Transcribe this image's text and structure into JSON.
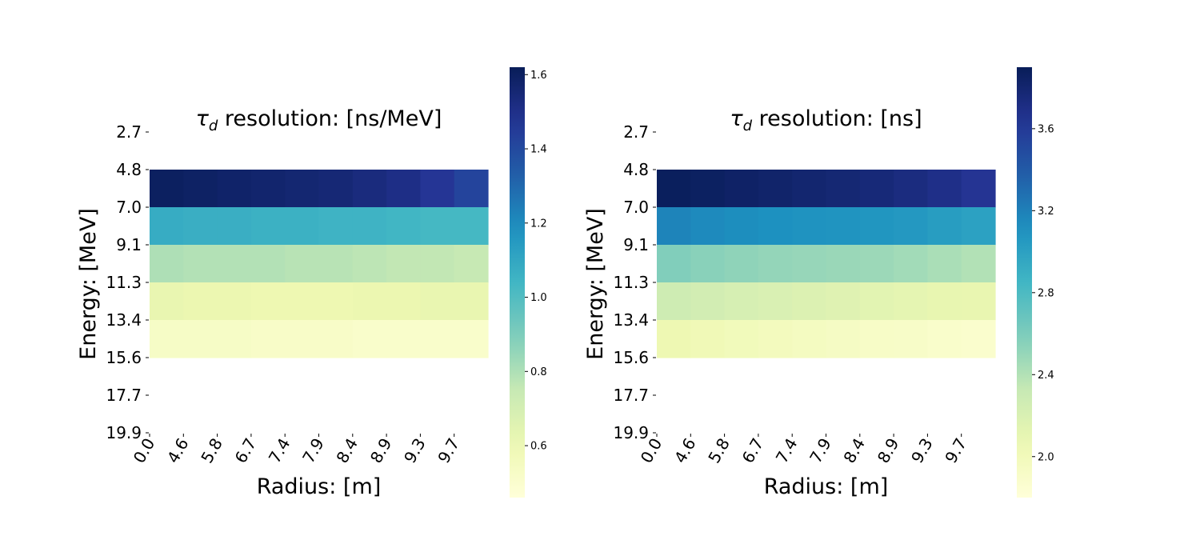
{
  "chart_data": [
    {
      "type": "heatmap",
      "title_symbol": "τ",
      "title_subscript": "d",
      "title_rest": " resolution: [ns/MeV]",
      "xlabel": "Radius: [m]",
      "ylabel": "Energy: [MeV]",
      "x_ticks": [
        "0.0",
        "4.6",
        "5.8",
        "6.7",
        "7.4",
        "7.9",
        "8.4",
        "8.9",
        "9.3",
        "9.7"
      ],
      "y_ticks": [
        "2.7",
        "4.8",
        "7.0",
        "9.1",
        "11.3",
        "13.4",
        "15.6",
        "17.7",
        "19.9"
      ],
      "rows": [
        {
          "energy_from": "4.8",
          "energy_to": "7.0",
          "values": [
            1.6,
            1.59,
            1.58,
            1.57,
            1.56,
            1.55,
            1.53,
            1.51,
            1.47,
            1.42
          ]
        },
        {
          "energy_from": "7.0",
          "energy_to": "9.1",
          "values": [
            1.08,
            1.07,
            1.07,
            1.06,
            1.06,
            1.05,
            1.05,
            1.04,
            1.03,
            1.03
          ]
        },
        {
          "energy_from": "9.1",
          "energy_to": "11.3",
          "values": [
            0.8,
            0.79,
            0.79,
            0.79,
            0.78,
            0.78,
            0.77,
            0.76,
            0.76,
            0.75
          ]
        },
        {
          "energy_from": "11.3",
          "energy_to": "13.4",
          "values": [
            0.62,
            0.61,
            0.61,
            0.6,
            0.6,
            0.6,
            0.61,
            0.61,
            0.62,
            0.62
          ]
        },
        {
          "energy_from": "13.4",
          "energy_to": "15.6",
          "values": [
            0.53,
            0.53,
            0.53,
            0.52,
            0.52,
            0.52,
            0.51,
            0.51,
            0.51,
            0.51
          ]
        }
      ],
      "colorbar": {
        "min": 0.46,
        "max": 1.62,
        "ticks": [
          "0.6",
          "0.8",
          "1.0",
          "1.2",
          "1.4",
          "1.6"
        ],
        "tick_values": [
          0.6,
          0.8,
          1.0,
          1.2,
          1.4,
          1.6
        ]
      },
      "colormap": "YlGnBu"
    },
    {
      "type": "heatmap",
      "title_symbol": "τ",
      "title_subscript": "d",
      "title_rest": " resolution: [ns]",
      "xlabel": "Radius: [m]",
      "ylabel": "Energy: [MeV]",
      "x_ticks": [
        "0.0",
        "4.6",
        "5.8",
        "6.7",
        "7.4",
        "7.9",
        "8.4",
        "8.9",
        "9.3",
        "9.7"
      ],
      "y_ticks": [
        "2.7",
        "4.8",
        "7.0",
        "9.1",
        "11.3",
        "13.4",
        "15.6",
        "17.7",
        "19.9"
      ],
      "rows": [
        {
          "energy_from": "4.8",
          "energy_to": "7.0",
          "values": [
            3.88,
            3.86,
            3.84,
            3.82,
            3.8,
            3.78,
            3.76,
            3.73,
            3.69,
            3.64
          ]
        },
        {
          "energy_from": "7.0",
          "energy_to": "9.1",
          "values": [
            3.18,
            3.15,
            3.13,
            3.11,
            3.1,
            3.09,
            3.08,
            3.06,
            3.03,
            3.0
          ]
        },
        {
          "energy_from": "9.1",
          "energy_to": "11.3",
          "values": [
            2.58,
            2.55,
            2.53,
            2.51,
            2.5,
            2.49,
            2.48,
            2.46,
            2.43,
            2.4
          ]
        },
        {
          "energy_from": "11.3",
          "energy_to": "13.4",
          "values": [
            2.28,
            2.25,
            2.22,
            2.2,
            2.18,
            2.16,
            2.14,
            2.12,
            2.1,
            2.09
          ]
        },
        {
          "energy_from": "13.4",
          "energy_to": "15.6",
          "values": [
            2.05,
            2.02,
            2.0,
            1.98,
            1.96,
            1.94,
            1.92,
            1.91,
            1.89,
            1.88
          ]
        }
      ],
      "colorbar": {
        "min": 1.8,
        "max": 3.9,
        "ticks": [
          "2.0",
          "2.4",
          "2.8",
          "3.2",
          "3.6"
        ],
        "tick_values": [
          2.0,
          2.4,
          2.8,
          3.2,
          3.6
        ]
      },
      "colormap": "YlGnBu"
    }
  ]
}
